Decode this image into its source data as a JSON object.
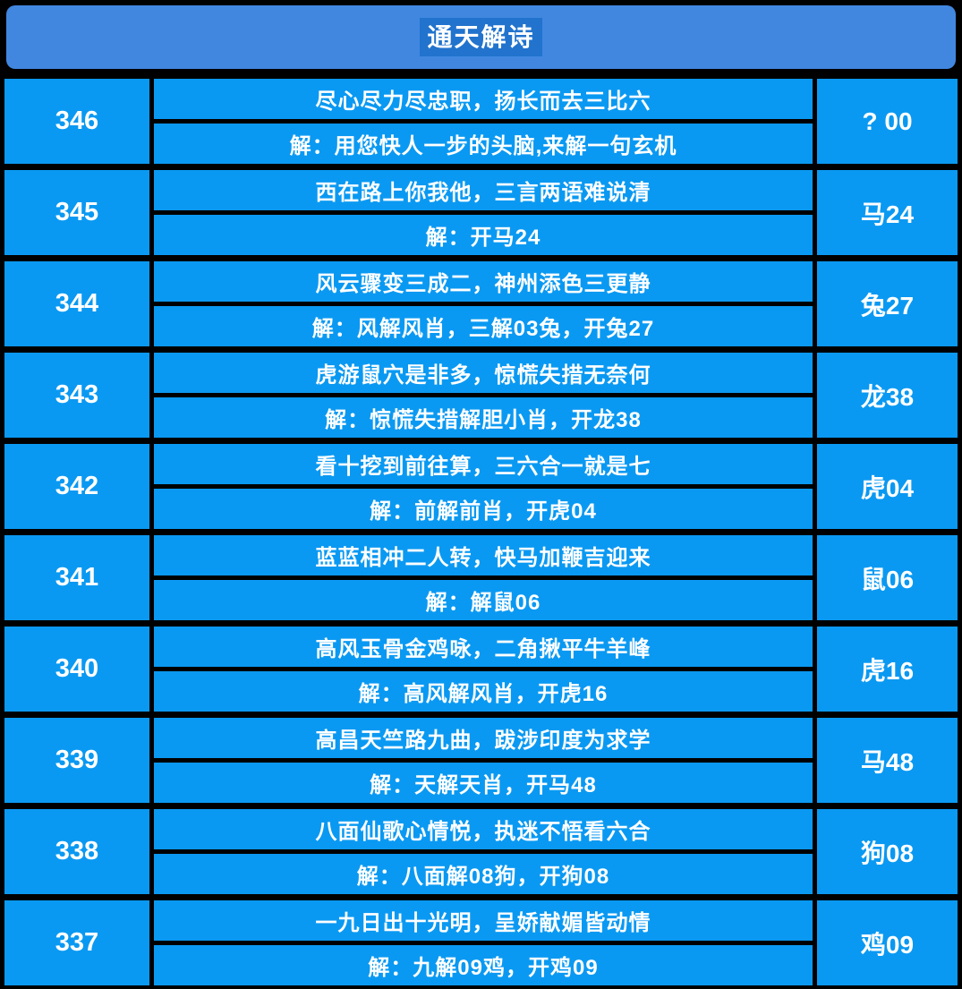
{
  "header": {
    "title": "通天解诗"
  },
  "colors": {
    "background": "#000000",
    "header_bar": "#4187e0",
    "title_highlight": "#2173cd",
    "cell_blue": "#0a99f2",
    "text": "#ffffff"
  },
  "rows": [
    {
      "issue": "346",
      "poem": "尽心尽力尽忠职，扬长而去三比六",
      "jie": "解：用您快人一步的头脑,来解一句玄机",
      "result": "? 00"
    },
    {
      "issue": "345",
      "poem": "西在路上你我他，三言两语难说清",
      "jie": "解：开马24",
      "result": "马24"
    },
    {
      "issue": "344",
      "poem": "风云骤变三成二，神州添色三更静",
      "jie": "解：风解风肖，三解03兔，开兔27",
      "result": "兔27"
    },
    {
      "issue": "343",
      "poem": "虎游鼠穴是非多，惊慌失措无奈何",
      "jie": "解：惊慌失措解胆小肖，开龙38",
      "result": "龙38"
    },
    {
      "issue": "342",
      "poem": "看十挖到前往算，三六合一就是七",
      "jie": "解：前解前肖，开虎04",
      "result": "虎04"
    },
    {
      "issue": "341",
      "poem": "蓝蓝相冲二人转，快马加鞭吉迎来",
      "jie": "解：解鼠06",
      "result": "鼠06"
    },
    {
      "issue": "340",
      "poem": "高风玉骨金鸡咏，二角揪平牛羊峰",
      "jie": "解：高风解风肖，开虎16",
      "result": "虎16"
    },
    {
      "issue": "339",
      "poem": "高昌天竺路九曲，跋涉印度为求学",
      "jie": "解：天解天肖，开马48",
      "result": "马48"
    },
    {
      "issue": "338",
      "poem": "八面仙歌心情悦，执迷不悟看六合",
      "jie": "解：八面解08狗，开狗08",
      "result": "狗08"
    },
    {
      "issue": "337",
      "poem": "一九日出十光明，呈娇献媚皆动情",
      "jie": "解：九解09鸡，开鸡09",
      "result": "鸡09"
    }
  ]
}
